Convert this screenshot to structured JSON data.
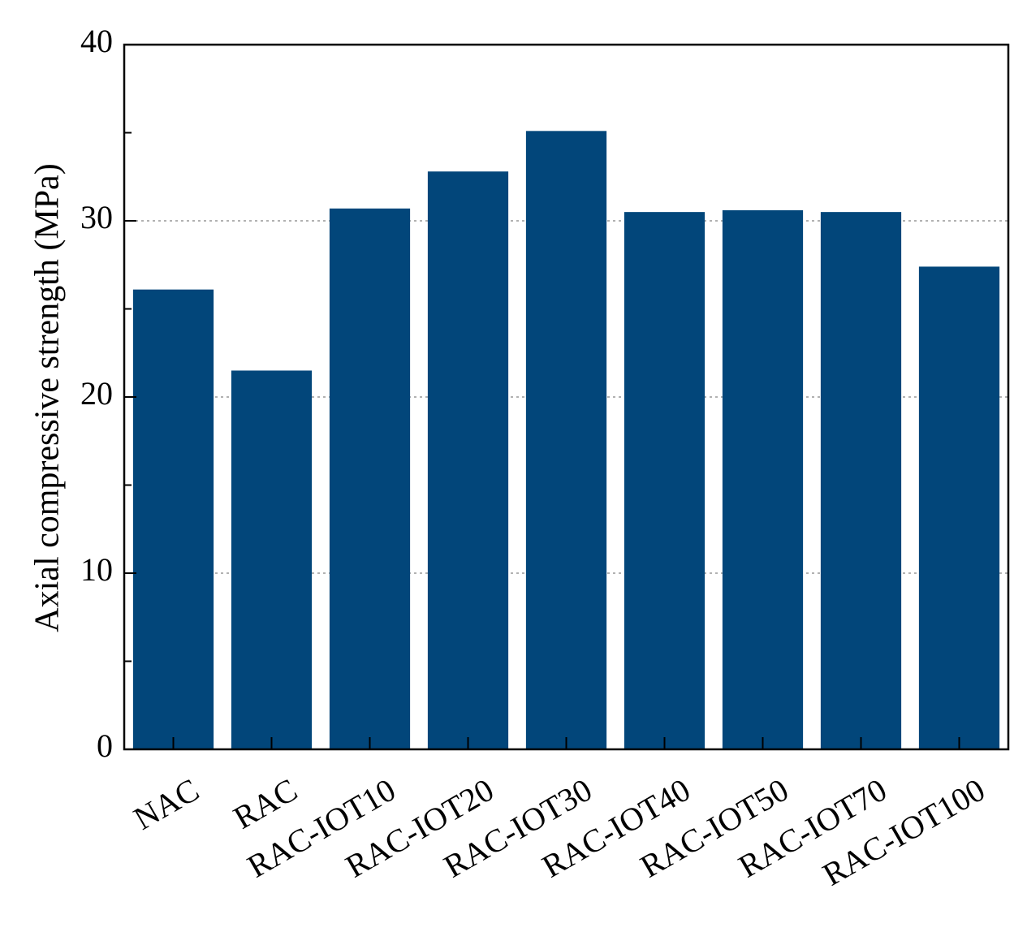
{
  "chart_data": {
    "type": "bar",
    "y_label": "Axial compressive strength (MPa)",
    "categories": [
      "NAC",
      "RAC",
      "RAC-IOT10",
      "RAC-IOT20",
      "RAC-IOT30",
      "RAC-IOT40",
      "RAC-IOT50",
      "RAC-IOT70",
      "RAC-IOT100"
    ],
    "values": [
      26.1,
      21.5,
      30.7,
      32.8,
      35.1,
      30.5,
      30.6,
      30.5,
      27.4
    ],
    "color": "#02467a",
    "ylim": [
      0,
      40
    ],
    "yticks": [
      0,
      10,
      20,
      30,
      40
    ],
    "yminorticks": [
      5,
      15,
      25,
      35
    ],
    "grid": true
  }
}
